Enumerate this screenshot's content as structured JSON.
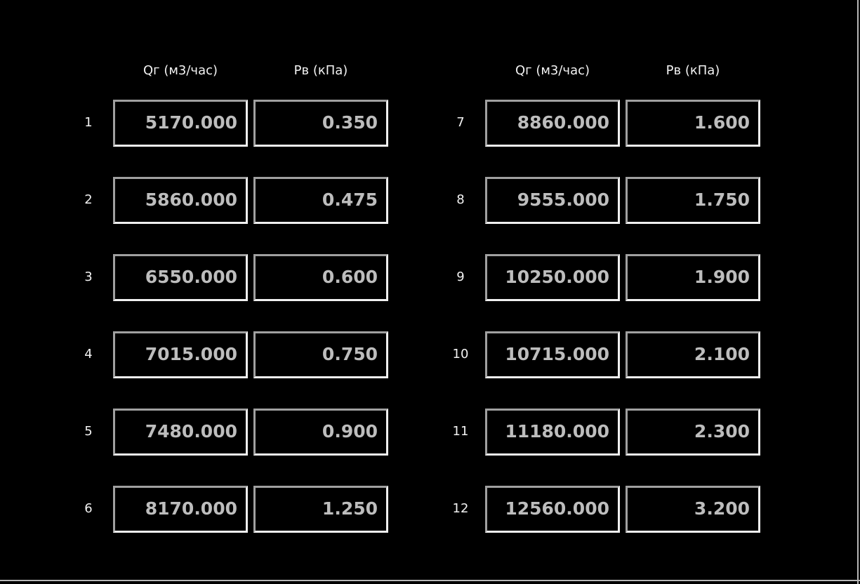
{
  "tables": [
    {
      "header_q": "Qг (м3/час)",
      "header_p": "Рв (кПа)",
      "rows": [
        {
          "num": "1",
          "q": "5170.000",
          "p": "0.350"
        },
        {
          "num": "2",
          "q": "5860.000",
          "p": "0.475"
        },
        {
          "num": "3",
          "q": "6550.000",
          "p": "0.600"
        },
        {
          "num": "4",
          "q": "7015.000",
          "p": "0.750"
        },
        {
          "num": "5",
          "q": "7480.000",
          "p": "0.900"
        },
        {
          "num": "6",
          "q": "8170.000",
          "p": "1.250"
        }
      ]
    },
    {
      "header_q": "Qг (м3/час)",
      "header_p": "Рв (кПа)",
      "rows": [
        {
          "num": "7",
          "q": "8860.000",
          "p": "1.600"
        },
        {
          "num": "8",
          "q": "9555.000",
          "p": "1.750"
        },
        {
          "num": "9",
          "q": "10250.000",
          "p": "1.900"
        },
        {
          "num": "10",
          "q": "10715.000",
          "p": "2.100"
        },
        {
          "num": "11",
          "q": "11180.000",
          "p": "2.300"
        },
        {
          "num": "12",
          "q": "12560.000",
          "p": "3.200"
        }
      ]
    }
  ]
}
